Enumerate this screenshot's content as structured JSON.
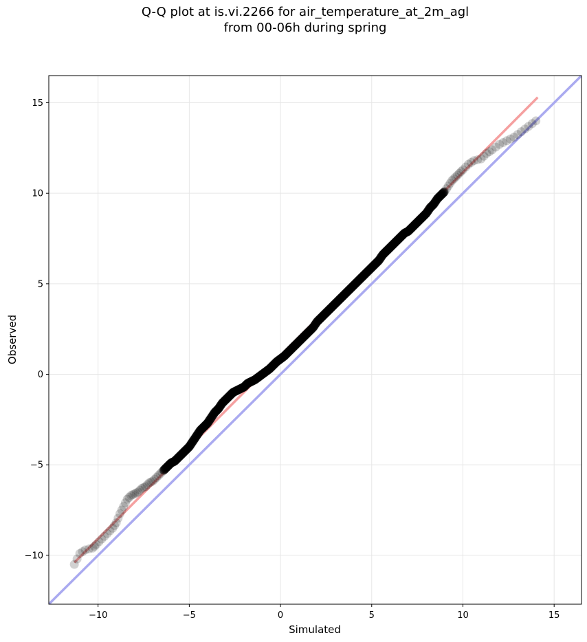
{
  "chart_data": {
    "type": "scatter",
    "title_line1": "Q-Q plot at is.vi.2266 for air_temperature_at_2m_agl",
    "title_line2": "from 00-06h during spring",
    "xlabel": "Simulated",
    "ylabel": "Observed",
    "xlim": [
      -12.7,
      16.5
    ],
    "ylim": [
      -12.7,
      16.5
    ],
    "xticks": [
      -10,
      -5,
      0,
      5,
      10,
      15
    ],
    "xtick_labels": [
      "−10",
      "−5",
      "0",
      "5",
      "10",
      "15"
    ],
    "yticks": [
      -10,
      -5,
      0,
      5,
      10,
      15
    ],
    "ytick_labels": [
      "−10",
      "−5",
      "0",
      "5",
      "10",
      "15"
    ],
    "grid": true,
    "identity_line": {
      "color": "#aaaaf0"
    },
    "fit_line": {
      "x": [
        -11.3,
        14.1
      ],
      "y": [
        -10.4,
        15.3
      ],
      "color": "#f5a0a0"
    },
    "points_color": "#000000",
    "points": {
      "x": [
        -11.3,
        -11.0,
        -10.7,
        -10.3,
        -10.1,
        -9.8,
        -9.5,
        -9.2,
        -9.0,
        -8.8,
        -8.6,
        -8.4,
        -8.2,
        -8.0,
        -7.8,
        -7.6,
        -7.4,
        -7.2,
        -7.0,
        -6.8,
        -6.6,
        -6.4,
        -6.2,
        -6.0,
        -5.8,
        -5.6,
        -5.4,
        -5.2,
        -5.0,
        -4.8,
        -4.6,
        -4.4,
        -4.2,
        -4.0,
        -3.8,
        -3.6,
        -3.4,
        -3.2,
        -3.0,
        -2.8,
        -2.6,
        -2.4,
        -2.2,
        -2.0,
        -1.8,
        -1.6,
        -1.4,
        -1.2,
        -1.0,
        -0.8,
        -0.6,
        -0.4,
        -0.2,
        0.0,
        0.2,
        0.4,
        0.6,
        0.8,
        1.0,
        1.2,
        1.4,
        1.6,
        1.8,
        2.0,
        2.2,
        2.4,
        2.6,
        2.8,
        3.0,
        3.2,
        3.4,
        3.6,
        3.8,
        4.0,
        4.2,
        4.4,
        4.6,
        4.8,
        5.0,
        5.2,
        5.4,
        5.6,
        5.8,
        6.0,
        6.2,
        6.4,
        6.6,
        6.8,
        7.0,
        7.2,
        7.4,
        7.6,
        7.8,
        8.0,
        8.2,
        8.4,
        8.6,
        8.8,
        9.0,
        9.2,
        9.4,
        9.6,
        9.8,
        10.0,
        10.3,
        10.6,
        11.0,
        11.3,
        11.6,
        12.0,
        12.4,
        12.8,
        13.2,
        13.6,
        14.0
      ],
      "y": [
        -10.5,
        -9.9,
        -9.7,
        -9.6,
        -9.4,
        -9.1,
        -8.8,
        -8.5,
        -8.2,
        -7.7,
        -7.3,
        -6.9,
        -6.7,
        -6.6,
        -6.5,
        -6.3,
        -6.2,
        -6.0,
        -5.9,
        -5.7,
        -5.5,
        -5.3,
        -5.1,
        -4.9,
        -4.8,
        -4.6,
        -4.4,
        -4.2,
        -4.0,
        -3.7,
        -3.4,
        -3.1,
        -2.9,
        -2.7,
        -2.4,
        -2.1,
        -1.9,
        -1.6,
        -1.4,
        -1.2,
        -1.0,
        -0.9,
        -0.8,
        -0.7,
        -0.5,
        -0.4,
        -0.3,
        -0.15,
        0.0,
        0.15,
        0.3,
        0.5,
        0.7,
        0.85,
        1.0,
        1.2,
        1.4,
        1.6,
        1.8,
        2.0,
        2.2,
        2.4,
        2.6,
        2.9,
        3.1,
        3.3,
        3.5,
        3.7,
        3.9,
        4.1,
        4.3,
        4.5,
        4.7,
        4.9,
        5.1,
        5.3,
        5.5,
        5.7,
        5.9,
        6.1,
        6.3,
        6.6,
        6.8,
        7.0,
        7.2,
        7.4,
        7.6,
        7.8,
        7.9,
        8.1,
        8.3,
        8.5,
        8.7,
        8.9,
        9.2,
        9.4,
        9.7,
        9.9,
        10.1,
        10.4,
        10.7,
        10.9,
        11.1,
        11.3,
        11.6,
        11.8,
        11.9,
        12.2,
        12.4,
        12.7,
        12.9,
        13.1,
        13.4,
        13.7,
        14.0
      ]
    }
  }
}
